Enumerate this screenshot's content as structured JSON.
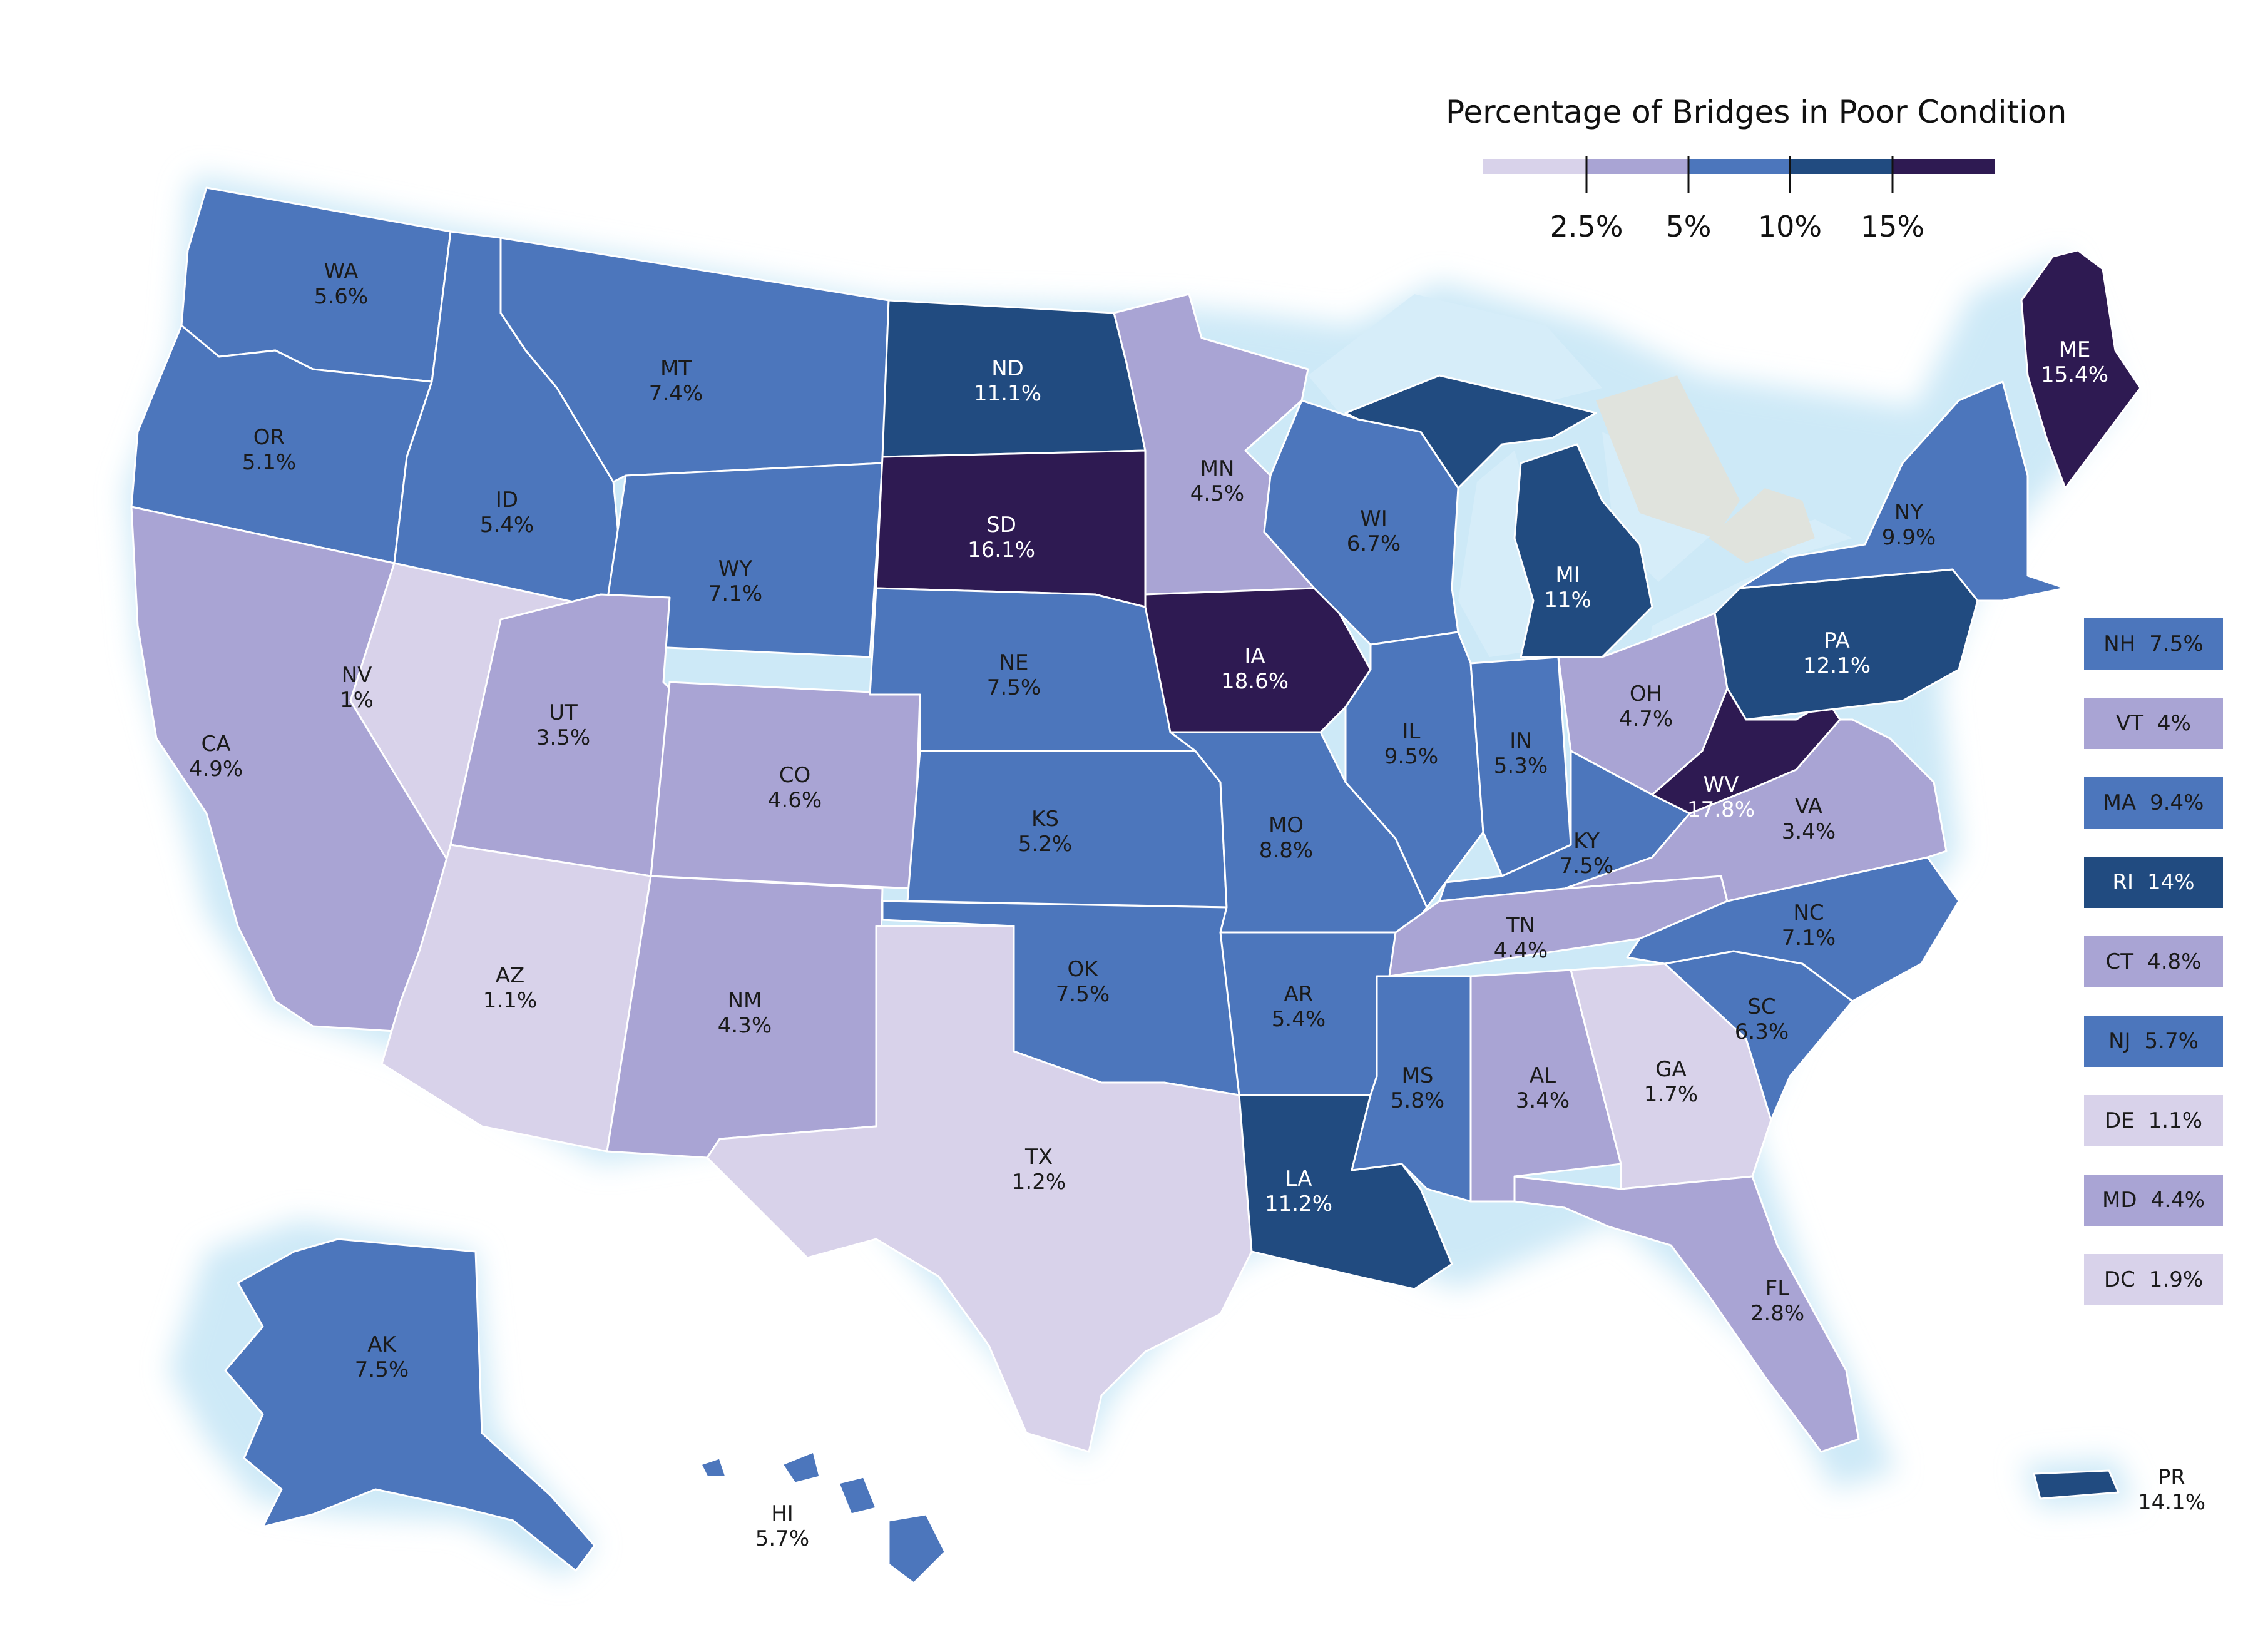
{
  "legend": {
    "title": "Percentage of Bridges in Poor Condition",
    "ticks": [
      "2.5%",
      "5%",
      "10%",
      "15%"
    ],
    "colors": [
      "#d8d2ea",
      "#a9a4d4",
      "#4c76bc",
      "#214b80",
      "#2e1a52"
    ]
  },
  "states": [
    {
      "abbr": "WA",
      "value": "5.6%"
    },
    {
      "abbr": "OR",
      "value": "5.1%"
    },
    {
      "abbr": "CA",
      "value": "4.9%"
    },
    {
      "abbr": "NV",
      "value": "1%"
    },
    {
      "abbr": "ID",
      "value": "5.4%"
    },
    {
      "abbr": "MT",
      "value": "7.4%"
    },
    {
      "abbr": "WY",
      "value": "7.1%"
    },
    {
      "abbr": "UT",
      "value": "3.5%"
    },
    {
      "abbr": "AZ",
      "value": "1.1%"
    },
    {
      "abbr": "CO",
      "value": "4.6%"
    },
    {
      "abbr": "NM",
      "value": "4.3%"
    },
    {
      "abbr": "ND",
      "value": "11.1%"
    },
    {
      "abbr": "SD",
      "value": "16.1%"
    },
    {
      "abbr": "NE",
      "value": "7.5%"
    },
    {
      "abbr": "KS",
      "value": "5.2%"
    },
    {
      "abbr": "OK",
      "value": "7.5%"
    },
    {
      "abbr": "TX",
      "value": "1.2%"
    },
    {
      "abbr": "MN",
      "value": "4.5%"
    },
    {
      "abbr": "IA",
      "value": "18.6%"
    },
    {
      "abbr": "MO",
      "value": "8.8%"
    },
    {
      "abbr": "AR",
      "value": "5.4%"
    },
    {
      "abbr": "LA",
      "value": "11.2%"
    },
    {
      "abbr": "WI",
      "value": "6.7%"
    },
    {
      "abbr": "IL",
      "value": "9.5%"
    },
    {
      "abbr": "MI",
      "value": "11%"
    },
    {
      "abbr": "IN",
      "value": "5.3%"
    },
    {
      "abbr": "OH",
      "value": "4.7%"
    },
    {
      "abbr": "KY",
      "value": "7.5%"
    },
    {
      "abbr": "TN",
      "value": "4.4%"
    },
    {
      "abbr": "MS",
      "value": "5.8%"
    },
    {
      "abbr": "AL",
      "value": "3.4%"
    },
    {
      "abbr": "GA",
      "value": "1.7%"
    },
    {
      "abbr": "FL",
      "value": "2.8%"
    },
    {
      "abbr": "SC",
      "value": "6.3%"
    },
    {
      "abbr": "NC",
      "value": "7.1%"
    },
    {
      "abbr": "VA",
      "value": "3.4%"
    },
    {
      "abbr": "WV",
      "value": "17.8%"
    },
    {
      "abbr": "PA",
      "value": "12.1%"
    },
    {
      "abbr": "NY",
      "value": "9.9%"
    },
    {
      "abbr": "ME",
      "value": "15.4%"
    },
    {
      "abbr": "AK",
      "value": "7.5%"
    },
    {
      "abbr": "HI",
      "value": "5.7%"
    },
    {
      "abbr": "PR",
      "value": "14.1%"
    }
  ],
  "small_states": [
    {
      "abbr": "NH",
      "value": "7.5%"
    },
    {
      "abbr": "VT",
      "value": "4%"
    },
    {
      "abbr": "MA",
      "value": "9.4%"
    },
    {
      "abbr": "RI",
      "value": "14%"
    },
    {
      "abbr": "CT",
      "value": "4.8%"
    },
    {
      "abbr": "NJ",
      "value": "5.7%"
    },
    {
      "abbr": "DE",
      "value": "1.1%"
    },
    {
      "abbr": "MD",
      "value": "4.4%"
    },
    {
      "abbr": "DC",
      "value": "1.9%"
    }
  ]
}
